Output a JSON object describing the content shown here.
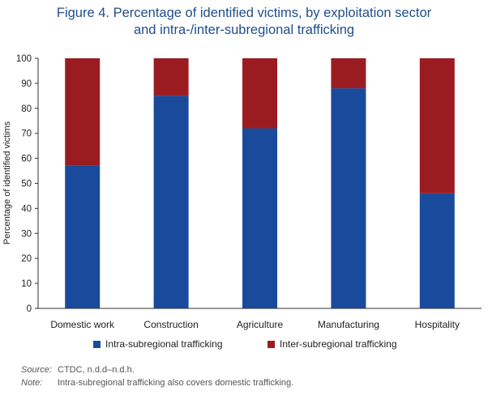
{
  "title_line1": "Figure 4. Percentage of identified victims, by exploitation sector",
  "title_line2": "and intra-/inter-subregional trafficking",
  "legend": [
    {
      "label": "Intra-subregional trafficking",
      "color": "#1a4a9c"
    },
    {
      "label": "Inter-subregional trafficking",
      "color": "#9b1c20"
    }
  ],
  "source_label": "Source:",
  "source_text": "CTDC, n.d.d–n.d.h.",
  "note_label": "Note:",
  "note_text": "Intra-subregional trafficking also covers domestic trafficking.",
  "chart_data": {
    "type": "bar",
    "stacked": true,
    "categories": [
      "Domestic work",
      "Construction",
      "Agriculture",
      "Manufacturing",
      "Hospitality"
    ],
    "series": [
      {
        "name": "Intra-subregional trafficking",
        "color": "#1a4a9c",
        "values": [
          57,
          85,
          72,
          88,
          46
        ]
      },
      {
        "name": "Inter-subregional trafficking",
        "color": "#9b1c20",
        "values": [
          43,
          15,
          28,
          12,
          54
        ]
      }
    ],
    "ylabel": "Percentage of identified victims",
    "xlabel": "",
    "ylim": [
      0,
      100
    ],
    "yticks": [
      0,
      10,
      20,
      30,
      40,
      50,
      60,
      70,
      80,
      90,
      100
    ],
    "grid": false,
    "legend_position": "bottom"
  }
}
